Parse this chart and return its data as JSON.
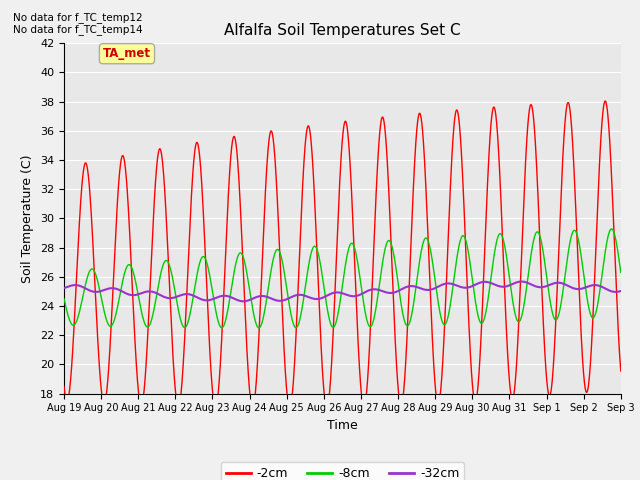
{
  "title": "Alfalfa Soil Temperatures Set C",
  "ylabel": "Soil Temperature (C)",
  "xlabel": "Time",
  "no_data_text": [
    "No data for f_TC_temp12",
    "No data for f_TC_temp14"
  ],
  "ta_met_label": "TA_met",
  "ylim": [
    18,
    42
  ],
  "yticks": [
    18,
    20,
    22,
    24,
    26,
    28,
    30,
    32,
    34,
    36,
    38,
    40,
    42
  ],
  "plot_bg_color": "#e8e8e8",
  "fig_bg_color": "#f0f0f0",
  "grid_color": "#ffffff",
  "line_2cm_color": "#ff0000",
  "line_8cm_color": "#00cc00",
  "line_32cm_color": "#9933cc",
  "legend_labels": [
    "-2cm",
    "-8cm",
    "-32cm"
  ],
  "x_tick_labels": [
    "Aug 19",
    "Aug 20",
    "Aug 21",
    "Aug 22",
    "Aug 23",
    "Aug 24",
    "Aug 25",
    "Aug 26",
    "Aug 27",
    "Aug 28",
    "Aug 29",
    "Aug 30",
    "Aug 31",
    "Sep 1",
    "Sep 2",
    "Sep 3"
  ],
  "figsize": [
    6.4,
    4.8
  ],
  "dpi": 100
}
